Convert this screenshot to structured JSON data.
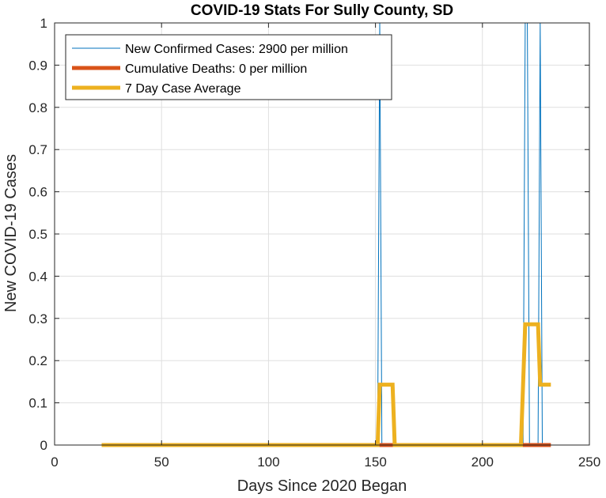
{
  "chart_data": {
    "type": "line",
    "title": "COVID-19 Stats For Sully County, SD",
    "xlabel": "Days Since 2020 Began",
    "ylabel": "New COVID-19 Cases",
    "xlim": [
      0,
      250
    ],
    "ylim": [
      0,
      1
    ],
    "xticks": [
      0,
      50,
      100,
      150,
      200,
      250
    ],
    "yticks": [
      0,
      0.1,
      0.2,
      0.3,
      0.4,
      0.5,
      0.6,
      0.7,
      0.8,
      0.9,
      1
    ],
    "xtick_labels": [
      "0",
      "50",
      "100",
      "150",
      "200",
      "250"
    ],
    "ytick_labels": [
      "0",
      "0.1",
      "0.2",
      "0.3",
      "0.4",
      "0.5",
      "0.6",
      "0.7",
      "0.8",
      "0.9",
      "1"
    ],
    "grid": true,
    "legend_position": "top-left",
    "series": [
      {
        "name": "New Confirmed Cases: 2900 per million",
        "color": "#0072BD",
        "x": [
          22,
          150,
          151,
          152,
          153,
          219,
          220,
          221,
          222,
          226,
          227,
          228,
          232
        ],
        "y": [
          0,
          0,
          0,
          1,
          0,
          0,
          1,
          1,
          0,
          0,
          1,
          0,
          0
        ]
      },
      {
        "name": "Cumulative Deaths: 0 per million",
        "color": "#D95319",
        "x": [
          151,
          158,
          220,
          232
        ],
        "y": [
          0,
          0,
          0,
          0
        ]
      },
      {
        "name": "7 Day Case Average",
        "color": "#EDB120",
        "x": [
          22,
          151,
          152,
          158,
          159,
          218,
          219,
          220,
          226,
          227,
          228,
          232
        ],
        "y": [
          0,
          0,
          0.143,
          0.143,
          0,
          0,
          0.143,
          0.286,
          0.286,
          0.143,
          0.143,
          0.143
        ]
      }
    ]
  }
}
